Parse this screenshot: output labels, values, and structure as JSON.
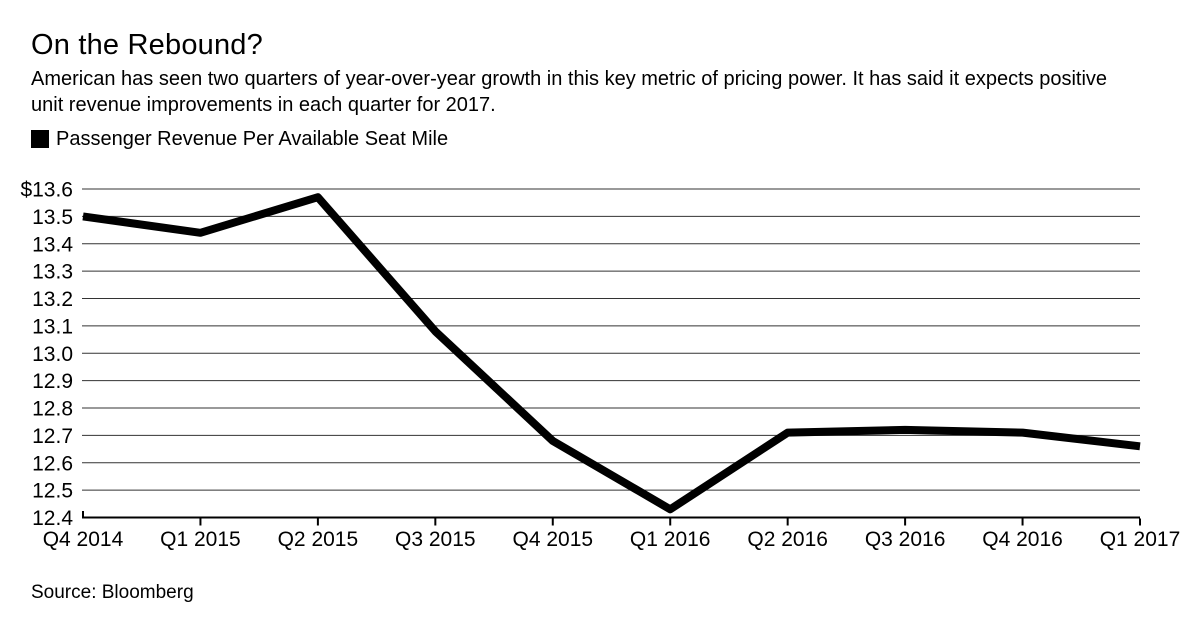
{
  "header": {
    "title": "On the Rebound?",
    "subtitle": "American has seen two quarters of year-over-year growth in this key metric of pricing power. It has said it expects positive\nunit revenue improvements in each quarter for 2017."
  },
  "legend": {
    "swatch_color": "#000000",
    "label": "Passenger Revenue Per Available Seat Mile"
  },
  "source_text": "Source: Bloomberg",
  "chart_data": {
    "type": "line",
    "title": "On the Rebound?",
    "categories": [
      "Q4 2014",
      "Q1 2015",
      "Q2 2015",
      "Q3 2015",
      "Q4 2015",
      "Q1 2016",
      "Q2 2016",
      "Q3 2016",
      "Q4 2016",
      "Q1 2017"
    ],
    "series": [
      {
        "name": "Passenger Revenue Per Available Seat Mile",
        "color": "#000000",
        "values": [
          13.5,
          13.44,
          13.57,
          13.08,
          12.68,
          12.43,
          12.71,
          12.72,
          12.71,
          12.66
        ]
      }
    ],
    "ylim": [
      12.4,
      13.6
    ],
    "ytick_step": 0.1,
    "y_tick_labels": [
      "$13.6",
      "13.5",
      "13.4",
      "13.3",
      "13.2",
      "13.1",
      "13.0",
      "12.9",
      "12.8",
      "12.7",
      "12.6",
      "12.5",
      "12.4"
    ],
    "xlabel": "",
    "ylabel": "",
    "grid": true,
    "legend_position": "top-left",
    "gridline_color": "#333333",
    "axis_color": "#000000",
    "line_width": 8
  }
}
